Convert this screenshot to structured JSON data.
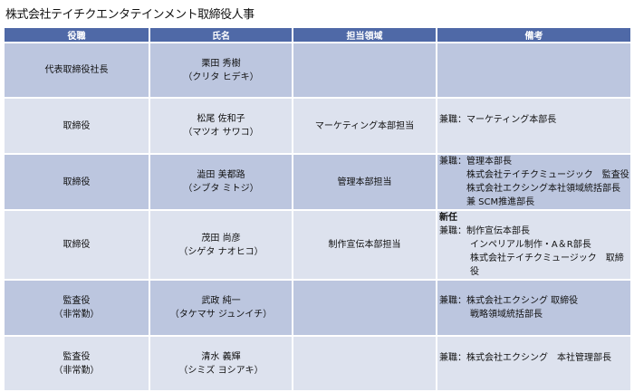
{
  "title": "株式会社テイチクエンタテインメント取締役人事",
  "headers": [
    "役職",
    "氏名",
    "担当領域",
    "備考"
  ],
  "rows": [
    {
      "position": [
        "代表取締役社長"
      ],
      "name": "栗田 秀樹",
      "kana": "（クリタ ヒデキ）",
      "area": "",
      "notes": []
    },
    {
      "position": [
        "取締役"
      ],
      "name": "松尾 佐和子",
      "kana": "（マツオ サワコ）",
      "area": "マーケティング本部担当",
      "notes": [
        "兼職：マーケティング本部長"
      ]
    },
    {
      "position": [
        "取締役"
      ],
      "name": "澁田 美都路",
      "kana": "（シブタ ミトジ）",
      "area": "管理本部担当",
      "notes": [
        "兼職：管理本部長",
        "株式会社テイチクミュージック　監査役",
        "株式会社エクシング本社領域統括部長",
        "兼 SCM推進部長"
      ]
    },
    {
      "position": [
        "取締役"
      ],
      "name": "茂田 尚彦",
      "kana": "（シゲタ ナオヒコ）",
      "area": "制作宣伝本部担当",
      "badge": "新任",
      "notes": [
        "兼職：制作宣伝本部長",
        "インペリアル制作・A＆R部長",
        "株式会社テイチクミュージック　取締役"
      ]
    },
    {
      "position": [
        "監査役",
        "（非常勤）"
      ],
      "name": "武政 純一",
      "kana": "（タケマサ ジュンイチ）",
      "area": "",
      "notes": [
        "兼職：株式会社エクシング 取締役",
        "戦略領域統括部長"
      ]
    },
    {
      "position": [
        "監査役",
        "（非常勤）"
      ],
      "name": "清水 義輝",
      "kana": "（シミズ ヨシアキ）",
      "area": "",
      "notes": [
        "兼職：株式会社エクシング　本社管理部長"
      ]
    }
  ],
  "colors": {
    "header": "#4f69a7",
    "row_dark": "#bcc6df",
    "row_light": "#dde2ee"
  }
}
